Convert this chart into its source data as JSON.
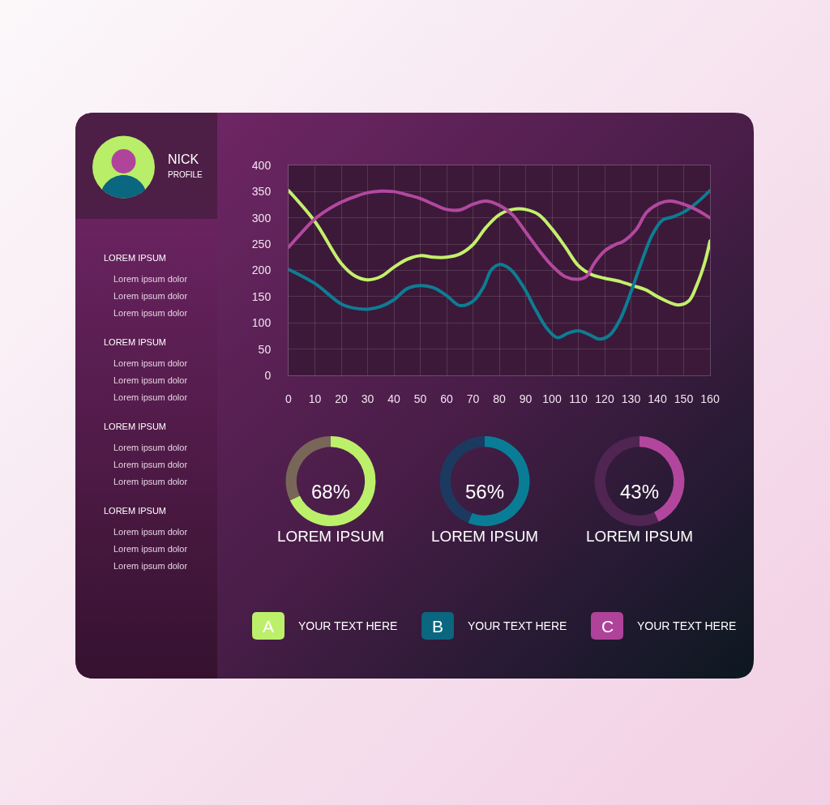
{
  "chart_data": [
    {
      "type": "other",
      "title": "NICK",
      "subtitle": "PROFILE",
      "annotations": [
        "LOREM IPSUM",
        "Lorem ipsum dolor",
        "Lorem ipsum dolor",
        "Lorem ipsum dolor",
        "LOREM IPSUM",
        "Lorem ipsum dolor",
        "Lorem ipsum dolor",
        "Lorem ipsum dolor",
        "LOREM IPSUM",
        "Lorem ipsum dolor",
        "Lorem ipsum dolor",
        "Lorem ipsum dolor",
        "LOREM IPSUM",
        "Lorem ipsum dolor",
        "Lorem ipsum dolor",
        "Lorem ipsum dolor"
      ]
    },
    {
      "type": "line",
      "xlim": [
        0,
        160
      ],
      "xticks": [
        0,
        10,
        20,
        30,
        40,
        50,
        60,
        70,
        80,
        90,
        100,
        110,
        120,
        130,
        140,
        150,
        160
      ],
      "ylim": [
        0,
        400
      ],
      "yticks": [
        0,
        50,
        100,
        150,
        200,
        250,
        300,
        350,
        400
      ],
      "grid": true,
      "line_style": "solid",
      "series": [
        {
          "color": "#c3f06b",
          "x": [
            0,
            10,
            20,
            25,
            30,
            35,
            40,
            45,
            50,
            55,
            60,
            65,
            70,
            75,
            80,
            85,
            90,
            95,
            100,
            105,
            110,
            115,
            120,
            125,
            130,
            136,
            140,
            148,
            152,
            155,
            158,
            160
          ],
          "values": [
            352,
            293,
            213,
            190,
            182,
            188,
            206,
            221,
            228,
            225,
            225,
            231,
            249,
            282,
            306,
            316,
            316,
            306,
            279,
            245,
            209,
            192,
            185,
            180,
            172,
            162,
            150,
            134,
            142,
            172,
            215,
            256
          ]
        },
        {
          "color": "#0d7d93",
          "x": [
            0,
            10,
            20,
            25,
            30,
            35,
            40,
            45,
            50,
            55,
            60,
            65,
            70,
            74,
            77,
            80,
            84,
            89,
            94,
            98,
            102,
            106,
            110,
            114,
            118,
            122,
            126,
            130,
            134,
            138,
            142,
            146,
            150,
            155,
            160
          ],
          "values": [
            202,
            175,
            136,
            128,
            126,
            131,
            144,
            165,
            171,
            167,
            152,
            133,
            141,
            168,
            201,
            211,
            203,
            170,
            123,
            90,
            72,
            80,
            85,
            78,
            69,
            77,
            108,
            159,
            216,
            267,
            296,
            302,
            311,
            329,
            352
          ]
        },
        {
          "color": "#b3489f",
          "x": [
            0,
            5,
            10,
            15,
            20,
            25,
            30,
            35,
            40,
            45,
            50,
            55,
            60,
            65,
            70,
            75,
            80,
            85,
            90,
            95,
            100,
            105,
            110,
            113,
            116,
            120,
            124,
            127,
            132,
            136,
            141,
            145,
            150,
            155,
            160
          ],
          "values": [
            244,
            272,
            298,
            316,
            330,
            340,
            348,
            351,
            350,
            344,
            337,
            326,
            316,
            315,
            326,
            332,
            324,
            306,
            273,
            239,
            209,
            188,
            183,
            188,
            213,
            237,
            249,
            255,
            278,
            311,
            328,
            332,
            326,
            315,
            300
          ]
        }
      ]
    },
    {
      "type": "donut",
      "title": "LOREM IPSUM",
      "categories": [
        null,
        null
      ],
      "values": [
        68,
        32
      ],
      "colors": [
        "#bdf06a",
        "#786759"
      ],
      "annotations": [
        "68%"
      ]
    },
    {
      "type": "donut",
      "title": "LOREM IPSUM",
      "categories": [
        null,
        null
      ],
      "values": [
        56,
        44
      ],
      "colors": [
        "#0a7d96",
        "#1c3a5f"
      ],
      "annotations": [
        "56%"
      ]
    },
    {
      "type": "donut",
      "title": "LOREM IPSUM",
      "categories": [
        null,
        null
      ],
      "values": [
        43,
        57
      ],
      "colors": [
        "#b2469c",
        "#502552"
      ],
      "annotations": [
        "43%"
      ]
    },
    {
      "type": "other",
      "categories": [
        "A",
        "B",
        "C"
      ],
      "colors": [
        "#bdf06a",
        "#0b6680",
        "#ae4399"
      ],
      "annotations": [
        "YOUR TEXT HERE",
        "YOUR TEXT HERE",
        "YOUR TEXT HERE"
      ]
    }
  ]
}
